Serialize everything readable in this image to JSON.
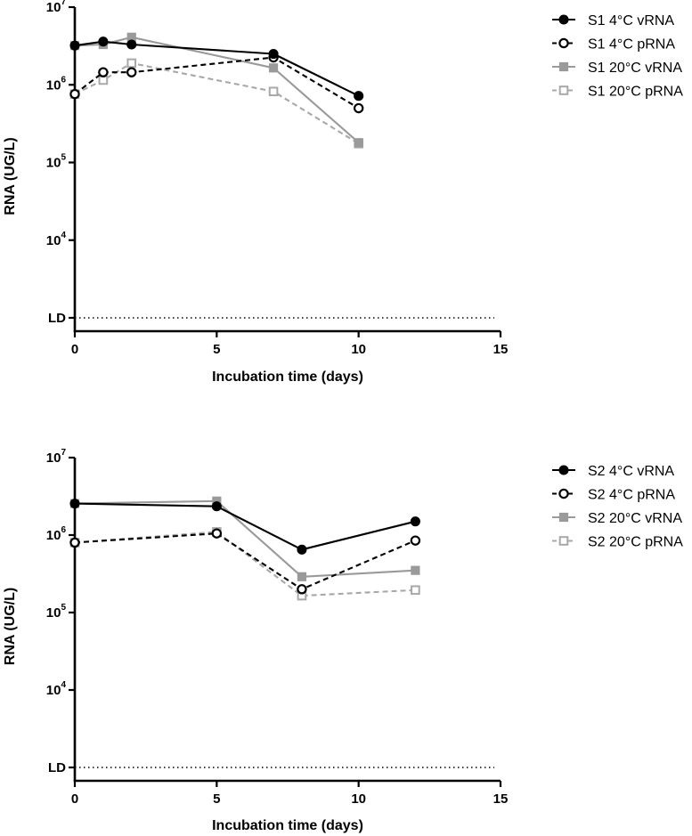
{
  "chart_data": [
    {
      "type": "line",
      "xlabel": "Incubation time (days)",
      "ylabel": "RNA (UG/L)",
      "x_ticks": [
        "0",
        "5",
        "10",
        "15"
      ],
      "xlim": [
        0,
        15
      ],
      "y_scale": "log",
      "y_ticks": [
        {
          "base": "10",
          "exp": "7"
        },
        {
          "base": "10",
          "exp": "6"
        },
        {
          "base": "10",
          "exp": "5"
        },
        {
          "base": "10",
          "exp": "4"
        }
      ],
      "ylim_log10": [
        3,
        7
      ],
      "ld_label": "LD",
      "ld_log10": 3,
      "legend_position": "top-right",
      "series": [
        {
          "name": "S1 4°C vRNA",
          "color": "#000000",
          "dashed": false,
          "marker": "circle-filled",
          "x": [
            0,
            1,
            2,
            7,
            10
          ],
          "y": [
            3200000,
            3600000,
            3300000,
            2500000,
            720000
          ]
        },
        {
          "name": "S1 4°C pRNA",
          "color": "#000000",
          "dashed": true,
          "marker": "circle-open",
          "x": [
            0,
            1,
            2,
            7,
            10
          ],
          "y": [
            760000,
            1450000,
            1450000,
            2250000,
            500000
          ]
        },
        {
          "name": "S1 20°C vRNA",
          "color": "#9a9a9a",
          "dashed": false,
          "marker": "square-filled",
          "x": [
            0,
            1,
            2,
            7,
            10
          ],
          "y": [
            3200000,
            3300000,
            4100000,
            1650000,
            180000
          ]
        },
        {
          "name": "S1 20°C pRNA",
          "color": "#a8a8a8",
          "dashed": true,
          "marker": "square-open",
          "x": [
            0,
            1,
            2,
            7,
            10
          ],
          "y": [
            760000,
            1150000,
            1900000,
            820000,
            175000
          ]
        }
      ]
    },
    {
      "type": "line",
      "xlabel": "Incubation time (days)",
      "ylabel": "RNA (UG/L)",
      "x_ticks": [
        "0",
        "5",
        "10",
        "15"
      ],
      "xlim": [
        0,
        15
      ],
      "y_scale": "log",
      "y_ticks": [
        {
          "base": "10",
          "exp": "7"
        },
        {
          "base": "10",
          "exp": "6"
        },
        {
          "base": "10",
          "exp": "5"
        },
        {
          "base": "10",
          "exp": "4"
        }
      ],
      "ylim_log10": [
        3,
        7
      ],
      "ld_label": "LD",
      "ld_log10": 3,
      "legend_position": "top-right",
      "series": [
        {
          "name": "S2 4°C vRNA",
          "color": "#000000",
          "dashed": false,
          "marker": "circle-filled",
          "x": [
            0,
            5,
            8,
            12
          ],
          "y": [
            2550000,
            2350000,
            650000,
            1500000
          ]
        },
        {
          "name": "S2 4°C pRNA",
          "color": "#000000",
          "dashed": true,
          "marker": "circle-open",
          "x": [
            0,
            5,
            8,
            12
          ],
          "y": [
            800000,
            1050000,
            200000,
            850000
          ]
        },
        {
          "name": "S2 20°C vRNA",
          "color": "#9a9a9a",
          "dashed": false,
          "marker": "square-filled",
          "x": [
            0,
            5,
            8,
            12
          ],
          "y": [
            2550000,
            2750000,
            290000,
            350000
          ]
        },
        {
          "name": "S2 20°C pRNA",
          "color": "#a8a8a8",
          "dashed": true,
          "marker": "square-open",
          "x": [
            0,
            5,
            8,
            12
          ],
          "y": [
            800000,
            1100000,
            165000,
            195000
          ]
        }
      ]
    }
  ]
}
